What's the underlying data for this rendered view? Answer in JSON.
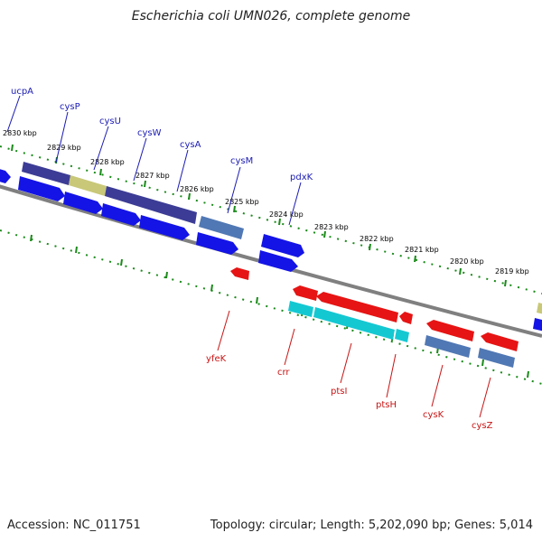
{
  "title": "Escherichia coli UMN026, complete genome",
  "footer": {
    "accession": "Accession: NC_011751",
    "summary": "Topology: circular; Length: 5,202,090 bp; Genes: 5,014"
  },
  "colors": {
    "backbone": "#808080",
    "tick": "#1a8a1a",
    "forward_label": "#1a1ab4",
    "reverse_label": "#c81414",
    "feature_blue": "#1414e6",
    "feature_navy": "#3c3c96",
    "feature_khaki": "#c8c878",
    "feature_steel": "#5078b4",
    "feature_red": "#e61414",
    "feature_cyan": "#14c8d2"
  },
  "kbp_labels": [
    "2830 kbp",
    "2829 kbp",
    "2828 kbp",
    "2827 kbp",
    "2826 kbp",
    "2825 kbp",
    "2824 kbp",
    "2823 kbp",
    "2822 kbp",
    "2821 kbp",
    "2820 kbp",
    "2819 kbp"
  ],
  "forward_genes": [
    "ucpA",
    "cysP",
    "cysU",
    "cysW",
    "cysA",
    "cysM",
    "pdxK"
  ],
  "reverse_genes": [
    "yfeK",
    "crr",
    "ptsI",
    "ptsH",
    "cysK",
    "cysZ"
  ]
}
